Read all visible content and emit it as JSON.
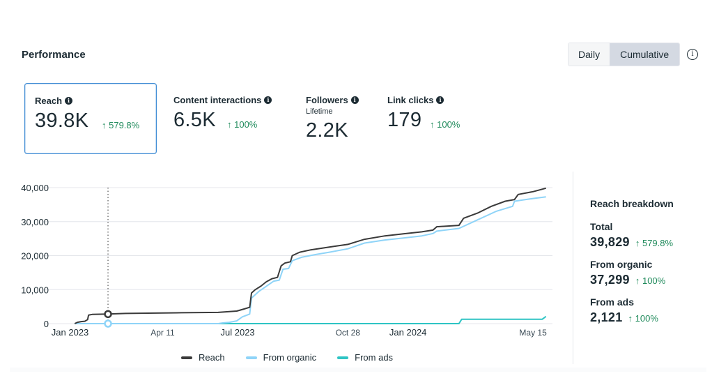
{
  "header": {
    "title": "Performance",
    "toggle": {
      "options": [
        "Daily",
        "Cumulative"
      ],
      "selected": "Cumulative"
    },
    "info_icon": "info-circle-icon"
  },
  "metrics": [
    {
      "label": "Reach",
      "value": "39.8K",
      "change": "↑ 579.8%",
      "selected": true,
      "info_icon": "info-icon"
    },
    {
      "label": "Content interactions",
      "value": "6.5K",
      "change": "↑ 100%",
      "selected": false,
      "info_icon": "info-icon"
    },
    {
      "label": "Followers",
      "sublabel": "Lifetime",
      "value": "2.2K",
      "change": "",
      "selected": false,
      "info_icon": "info-icon"
    },
    {
      "label": "Link clicks",
      "value": "179",
      "change": "↑ 100%",
      "selected": false,
      "info_icon": "info-icon"
    }
  ],
  "breakdown": {
    "title": "Reach breakdown",
    "items": [
      {
        "label": "Total",
        "value": "39,829",
        "change": "↑ 579.8%"
      },
      {
        "label": "From organic",
        "value": "37,299",
        "change": "↑ 100%"
      },
      {
        "label": "From ads",
        "value": "2,121",
        "change": "↑ 100%"
      }
    ]
  },
  "colors": {
    "reach": "#3a3a3a",
    "organic": "#8fd4f8",
    "ads": "#2ec4c4",
    "positive": "#1f8a5b",
    "selected_border": "#3f8cd4"
  },
  "chart_data": {
    "type": "line",
    "title": "",
    "xlabel": "",
    "ylabel": "",
    "ylim": [
      0,
      40000
    ],
    "yticks": [
      0,
      10000,
      20000,
      30000,
      40000
    ],
    "ytick_labels": [
      "0",
      "10,000",
      "20,000",
      "30,000",
      "40,000"
    ],
    "xlim_days": [
      -29,
      521
    ],
    "x_unit": "days since Jan 1 2023",
    "xticks": [
      {
        "day": 0,
        "label": "Jan 2023",
        "major": true
      },
      {
        "day": 100,
        "label": "Apr 11",
        "major": false
      },
      {
        "day": 181,
        "label": "Jul 2023",
        "major": true
      },
      {
        "day": 300,
        "label": "Oct 28",
        "major": false
      },
      {
        "day": 365,
        "label": "Jan 2024",
        "major": true
      },
      {
        "day": 500,
        "label": "May 15",
        "major": false
      }
    ],
    "grid": true,
    "legend_position": "bottom",
    "hover_marker_day": 41,
    "series": [
      {
        "name": "Reach",
        "key": "reach",
        "points": [
          [
            5,
            0
          ],
          [
            8,
            400
          ],
          [
            12,
            600
          ],
          [
            16,
            700
          ],
          [
            19,
            1200
          ],
          [
            20,
            2500
          ],
          [
            24,
            2700
          ],
          [
            41,
            2800
          ],
          [
            60,
            3000
          ],
          [
            120,
            3200
          ],
          [
            160,
            3300
          ],
          [
            180,
            3700
          ],
          [
            188,
            4300
          ],
          [
            194,
            4800
          ],
          [
            196,
            9000
          ],
          [
            200,
            10000
          ],
          [
            206,
            11000
          ],
          [
            212,
            12300
          ],
          [
            218,
            13200
          ],
          [
            224,
            13600
          ],
          [
            228,
            17000
          ],
          [
            232,
            17800
          ],
          [
            238,
            18200
          ],
          [
            240,
            20000
          ],
          [
            248,
            21000
          ],
          [
            260,
            21700
          ],
          [
            275,
            22300
          ],
          [
            285,
            22700
          ],
          [
            300,
            23300
          ],
          [
            318,
            24800
          ],
          [
            340,
            25800
          ],
          [
            360,
            26400
          ],
          [
            380,
            27000
          ],
          [
            392,
            27500
          ],
          [
            396,
            28500
          ],
          [
            420,
            28900
          ],
          [
            425,
            31000
          ],
          [
            440,
            32500
          ],
          [
            455,
            34500
          ],
          [
            470,
            36000
          ],
          [
            480,
            36500
          ],
          [
            484,
            38000
          ],
          [
            500,
            38800
          ],
          [
            514,
            39829
          ]
        ]
      },
      {
        "name": "From organic",
        "key": "organic",
        "points": [
          [
            5,
            0
          ],
          [
            160,
            0
          ],
          [
            165,
            200
          ],
          [
            172,
            400
          ],
          [
            180,
            800
          ],
          [
            186,
            2000
          ],
          [
            194,
            2800
          ],
          [
            196,
            7500
          ],
          [
            204,
            9500
          ],
          [
            212,
            11000
          ],
          [
            220,
            12500
          ],
          [
            226,
            12800
          ],
          [
            230,
            16000
          ],
          [
            236,
            16200
          ],
          [
            240,
            18500
          ],
          [
            250,
            19500
          ],
          [
            265,
            20300
          ],
          [
            280,
            21000
          ],
          [
            300,
            22000
          ],
          [
            318,
            23700
          ],
          [
            340,
            24600
          ],
          [
            360,
            25200
          ],
          [
            380,
            25800
          ],
          [
            392,
            26500
          ],
          [
            396,
            27200
          ],
          [
            420,
            28000
          ],
          [
            440,
            30500
          ],
          [
            460,
            33000
          ],
          [
            478,
            34500
          ],
          [
            480,
            36000
          ],
          [
            500,
            36800
          ],
          [
            514,
            37299
          ]
        ]
      },
      {
        "name": "From ads",
        "key": "ads",
        "points": [
          [
            160,
            0
          ],
          [
            420,
            0
          ],
          [
            423,
            1300
          ],
          [
            510,
            1300
          ],
          [
            514,
            2121
          ]
        ]
      }
    ]
  },
  "legend": [
    {
      "label": "Reach",
      "key": "reach"
    },
    {
      "label": "From organic",
      "key": "organic"
    },
    {
      "label": "From ads",
      "key": "ads"
    }
  ]
}
